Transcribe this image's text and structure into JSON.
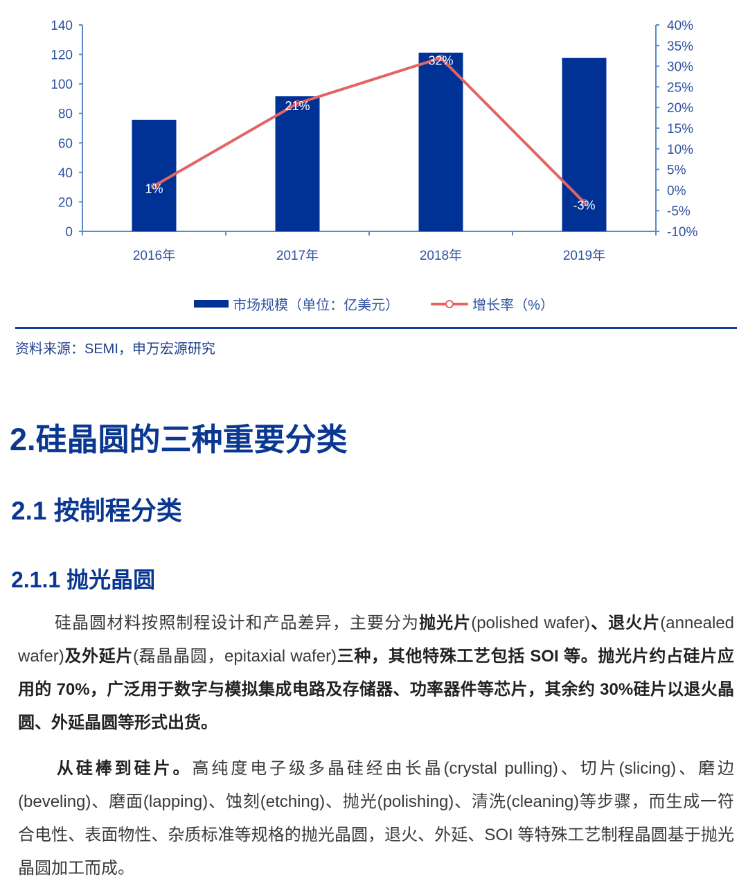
{
  "chart_data": {
    "type": "bar",
    "categories": [
      "2016年",
      "2017年",
      "2018年",
      "2019年"
    ],
    "series": [
      {
        "name": "市场规模（单位：亿美元）",
        "type": "bar",
        "axis": "left",
        "color": "#003296",
        "values": [
          75.7,
          91.6,
          121.2,
          117.6
        ]
      },
      {
        "name": "增长率（%）",
        "type": "line",
        "axis": "right",
        "color": "#e46464",
        "values": [
          1,
          21,
          32,
          -3
        ],
        "labels": [
          "1%",
          "21%",
          "32%",
          "-3%"
        ]
      }
    ],
    "title": "",
    "xlabel": "",
    "ylabel": "",
    "ylim": [
      0,
      140
    ],
    "y_ticks": [
      "0",
      "20",
      "40",
      "60",
      "80",
      "100",
      "120",
      "140"
    ],
    "y2lim": [
      -10,
      40
    ],
    "y2_ticks": [
      "-10%",
      "-5%",
      "0%",
      "5%",
      "10%",
      "15%",
      "20%",
      "25%",
      "30%",
      "35%",
      "40%"
    ],
    "grid": false,
    "legend_position": "bottom"
  },
  "legend": {
    "bar_label": "市场规模（单位：亿美元）",
    "line_label": "增长率（%）"
  },
  "source": "资料来源：SEMI，申万宏源研究",
  "headings": {
    "h1": "2.硅晶圆的三种重要分类",
    "h2": "2.1 按制程分类",
    "h3": "2.1.1  抛光晶圆"
  },
  "paragraph1": {
    "t1": "硅晶圆材料按照制程设计和产品差异，主要分为",
    "b1": "抛光片",
    "t2": "(polished  wafer)",
    "b2": "、退火片",
    "t3": "(annealed wafer)",
    "b3": "及外延片",
    "t4": "(磊晶晶圆，epitaxial wafer)",
    "b4": "三种，其他特殊工艺包括 SOI 等。抛光片约占硅片应用的 70%，广泛用于数字与模拟集成电路及存储器、功率器件等芯片，其余约 30%硅片以退火晶圆、外延晶圆等形式出货。"
  },
  "paragraph2": {
    "b1": "从硅棒到硅片。",
    "t1": "高纯度电子级多晶硅经由长晶(crystal  pulling)、切片(slicing)、磨边(beveling)、磨面(lapping)、蚀刻(etching)、抛光(polishing)、清洗(cleaning)等步骤，而生成一符合电性、表面物性、杂质标准等规格的抛光晶圆，退火、外延、SOI 等特殊工艺制程晶圆基于抛光晶圆加工而成。"
  },
  "colors": {
    "bar": "#003296",
    "line": "#e46464",
    "axis": "#5b8ac6",
    "heading": "#0a3791",
    "rule": "#0f3e9a"
  }
}
